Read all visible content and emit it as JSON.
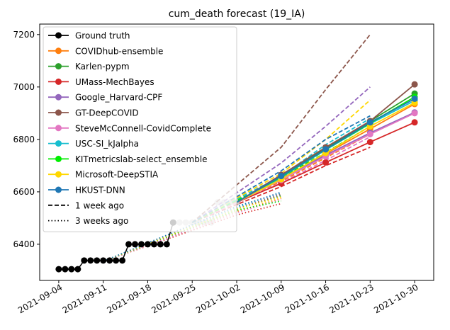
{
  "chart_data": {
    "type": "line",
    "title": "cum_death forecast (19_IA)",
    "xlabel": "",
    "ylabel": "",
    "x_ticks": [
      "2021-09-04",
      "2021-09-11",
      "2021-09-18",
      "2021-09-25",
      "2021-10-02",
      "2021-10-09",
      "2021-10-16",
      "2021-10-23",
      "2021-10-30"
    ],
    "y_ticks": [
      6400,
      6600,
      6800,
      7000,
      7200
    ],
    "xlim": [
      "2021-09-01",
      "2021-11-02"
    ],
    "ylim": [
      6262,
      7240
    ],
    "grid": false,
    "legend_position": "top-left",
    "ground_truth": {
      "name": "Ground truth",
      "color": "#000000",
      "points": [
        [
          "2021-09-04",
          6305
        ],
        [
          "2021-09-05",
          6305
        ],
        [
          "2021-09-06",
          6305
        ],
        [
          "2021-09-07",
          6305
        ],
        [
          "2021-09-08",
          6338
        ],
        [
          "2021-09-09",
          6338
        ],
        [
          "2021-09-10",
          6338
        ],
        [
          "2021-09-11",
          6338
        ],
        [
          "2021-09-12",
          6338
        ],
        [
          "2021-09-13",
          6338
        ],
        [
          "2021-09-14",
          6338
        ],
        [
          "2021-09-15",
          6400
        ],
        [
          "2021-09-16",
          6400
        ],
        [
          "2021-09-17",
          6400
        ],
        [
          "2021-09-18",
          6400
        ],
        [
          "2021-09-19",
          6400
        ],
        [
          "2021-09-20",
          6400
        ],
        [
          "2021-09-21",
          6400
        ],
        [
          "2021-09-22",
          6483
        ]
      ]
    },
    "faded_points": [
      [
        "2021-09-22",
        6483
      ],
      [
        "2021-09-23",
        6483
      ],
      [
        "2021-09-24",
        6483
      ],
      [
        "2021-09-25",
        6483
      ],
      [
        "2021-09-26",
        6483
      ],
      [
        "2021-09-27",
        6483
      ],
      [
        "2021-09-28",
        6483
      ],
      [
        "2021-09-29",
        6560
      ],
      [
        "2021-09-30",
        6560
      ],
      [
        "2021-10-01",
        6560
      ],
      [
        "2021-10-02",
        6560
      ]
    ],
    "forecast_start": [
      "2021-10-02",
      6560
    ],
    "forecast_dates": [
      "2021-10-09",
      "2021-10-16",
      "2021-10-23",
      "2021-10-30"
    ],
    "series": [
      {
        "name": "COVIDhub-ensemble",
        "color": "#ff7f0e",
        "values": [
          6650,
          6745,
          6840,
          6935
        ],
        "wk1": [
          6640,
          6730,
          6820
        ],
        "wk3": [
          6525,
          6575
        ]
      },
      {
        "name": "Karlen-pypm",
        "color": "#2ca02c",
        "values": [
          6660,
          6765,
          6870,
          6975
        ],
        "wk1": [
          6650,
          6760,
          6860
        ],
        "wk3": [
          6535,
          6585
        ]
      },
      {
        "name": "UMass-MechBayes",
        "color": "#d62728",
        "values": [
          6632,
          6712,
          6790,
          6865
        ],
        "wk1": [
          6620,
          6700,
          6770
        ],
        "wk3": [
          6512,
          6555
        ]
      },
      {
        "name": "Google_Harvard-CPF",
        "color": "#9467bd",
        "values": [
          6650,
          6740,
          6825,
          6903
        ],
        "wk1": [
          6710,
          6850,
          7000
        ],
        "wk3": [
          6540,
          6600
        ]
      },
      {
        "name": "GT-DeepCOVID",
        "color": "#8c564b",
        "values": [
          6665,
          6770,
          6870,
          7010
        ],
        "wk1": [
          6770,
          6990,
          7200
        ],
        "wk3": [
          6535,
          6590
        ]
      },
      {
        "name": "SteveMcConnell-CovidComplete",
        "color": "#e377c2",
        "values": [
          6645,
          6735,
          6820,
          6900
        ],
        "wk1": [
          6635,
          6720,
          6810
        ],
        "wk3": [
          6520,
          6570
        ]
      },
      {
        "name": "USC-SI_kJalpha",
        "color": "#17becf",
        "values": [
          6655,
          6760,
          6860,
          6948
        ],
        "wk1": [
          6660,
          6780,
          6880
        ],
        "wk3": [
          6540,
          6598
        ]
      },
      {
        "name": "KITmetricslab-select_ensemble",
        "color": "#00ee00",
        "values": [
          6658,
          6762,
          6862,
          6962
        ],
        "wk1": [
          6650,
          6750,
          6850
        ],
        "wk3": [
          6530,
          6565
        ]
      },
      {
        "name": "Microsoft-DeepSTIA",
        "color": "#ffd700",
        "values": [
          6648,
          6748,
          6850,
          6940
        ],
        "wk1": [
          6670,
          6800,
          6950
        ],
        "wk3": [
          6535,
          6580
        ]
      },
      {
        "name": "HKUST-DNN",
        "color": "#1f77b4",
        "values": [
          6660,
          6762,
          6865,
          6955
        ],
        "wk1": [
          6680,
          6800,
          6890
        ],
        "wk3": [
          6545,
          6595
        ]
      }
    ],
    "legend_extra": [
      {
        "name": "1 week ago",
        "style": "dashed"
      },
      {
        "name": "3 weeks ago",
        "style": "dotted"
      }
    ]
  }
}
